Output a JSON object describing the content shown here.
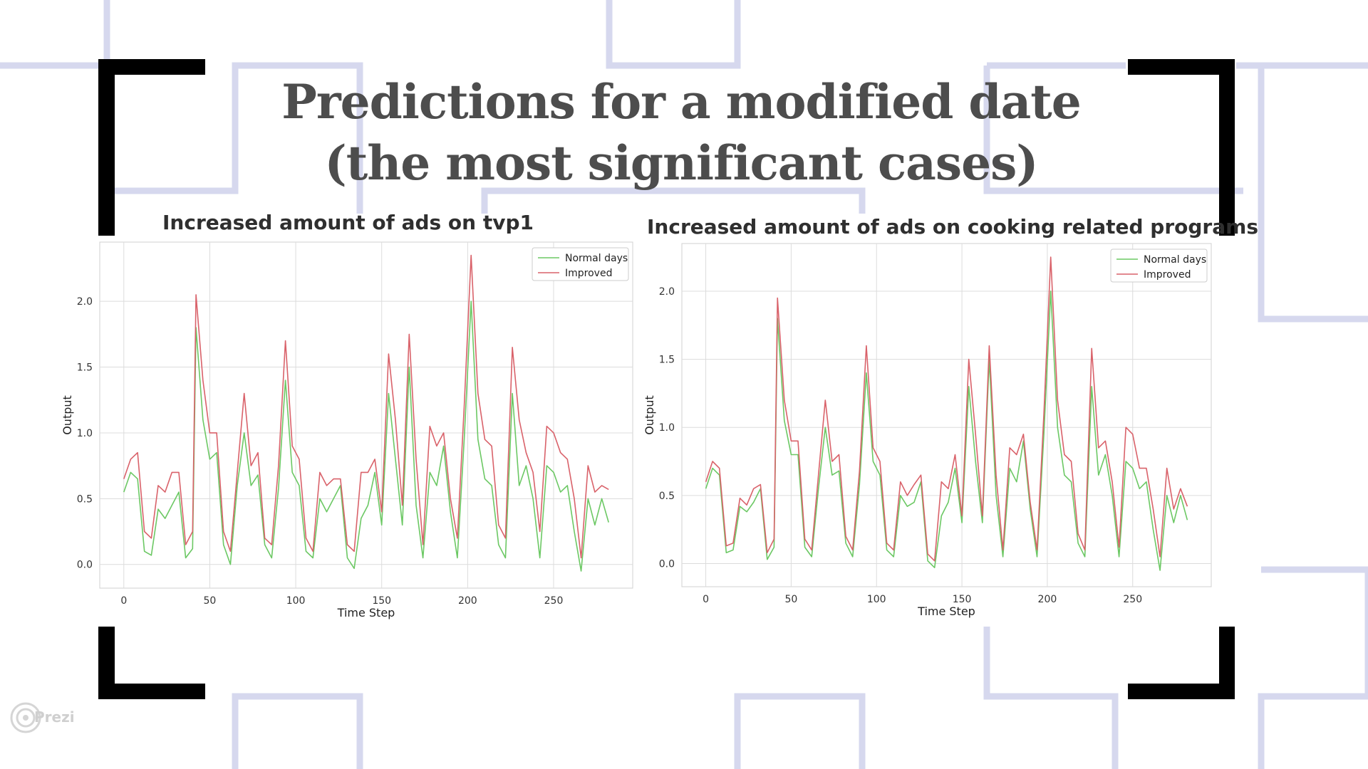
{
  "slide": {
    "title_line1": "Predictions for a modified date",
    "title_line2": "(the most significant cases)",
    "watermark": "Prezi",
    "colors": {
      "frame_decor": "#d6d8ee",
      "brackets": "#000000",
      "title": "#4d4d4d",
      "normal_series": "#6cc864",
      "improved_series": "#d9626a"
    }
  },
  "chart_data": [
    {
      "type": "line",
      "title": "Increased amount of ads on tvp1",
      "xlabel": "Time Step",
      "ylabel": "Output",
      "xlim": [
        -14,
        296
      ],
      "ylim": [
        -0.18,
        2.45
      ],
      "xticks": [
        0,
        50,
        100,
        150,
        200,
        250
      ],
      "yticks": [
        0.0,
        0.5,
        1.0,
        1.5,
        2.0
      ],
      "ytick_labels": [
        "0.0",
        "0.5",
        "1.0",
        "1.5",
        "2.0"
      ],
      "grid": true,
      "legend_position": "top-right",
      "series": [
        {
          "name": "Normal days",
          "color": "#6cc864",
          "x": [
            0,
            4,
            8,
            12,
            16,
            20,
            24,
            28,
            32,
            36,
            40,
            42,
            46,
            50,
            54,
            58,
            62,
            66,
            70,
            74,
            78,
            82,
            86,
            90,
            94,
            98,
            102,
            106,
            110,
            114,
            118,
            122,
            126,
            130,
            134,
            138,
            142,
            146,
            150,
            154,
            158,
            162,
            166,
            170,
            174,
            178,
            182,
            186,
            190,
            194,
            198,
            202,
            206,
            210,
            214,
            218,
            222,
            226,
            230,
            234,
            238,
            242,
            246,
            250,
            254,
            258,
            262,
            266,
            270,
            274,
            278,
            282
          ],
          "values": [
            0.55,
            0.7,
            0.65,
            0.1,
            0.07,
            0.42,
            0.35,
            0.45,
            0.55,
            0.05,
            0.12,
            1.8,
            1.1,
            0.8,
            0.85,
            0.15,
            0.0,
            0.6,
            1.0,
            0.6,
            0.68,
            0.15,
            0.05,
            0.58,
            1.4,
            0.7,
            0.6,
            0.1,
            0.05,
            0.5,
            0.4,
            0.5,
            0.6,
            0.05,
            -0.03,
            0.35,
            0.45,
            0.7,
            0.3,
            1.3,
            0.8,
            0.3,
            1.5,
            0.45,
            0.05,
            0.7,
            0.6,
            0.9,
            0.4,
            0.05,
            0.95,
            2.0,
            0.95,
            0.65,
            0.6,
            0.15,
            0.05,
            1.3,
            0.6,
            0.75,
            0.5,
            0.05,
            0.75,
            0.7,
            0.55,
            0.6,
            0.25,
            -0.05,
            0.5,
            0.3,
            0.5,
            0.32
          ]
        },
        {
          "name": "Improved",
          "color": "#d9626a",
          "x": [
            0,
            4,
            8,
            12,
            16,
            20,
            24,
            28,
            32,
            36,
            40,
            42,
            46,
            50,
            54,
            58,
            62,
            66,
            70,
            74,
            78,
            82,
            86,
            90,
            94,
            98,
            102,
            106,
            110,
            114,
            118,
            122,
            126,
            130,
            134,
            138,
            142,
            146,
            150,
            154,
            158,
            162,
            166,
            170,
            174,
            178,
            182,
            186,
            190,
            194,
            198,
            202,
            206,
            210,
            214,
            218,
            222,
            226,
            230,
            234,
            238,
            242,
            246,
            250,
            254,
            258,
            262,
            266,
            270,
            274,
            278,
            282
          ],
          "values": [
            0.65,
            0.8,
            0.85,
            0.25,
            0.2,
            0.6,
            0.55,
            0.7,
            0.7,
            0.15,
            0.25,
            2.05,
            1.4,
            1.0,
            1.0,
            0.25,
            0.1,
            0.7,
            1.3,
            0.75,
            0.85,
            0.2,
            0.15,
            0.75,
            1.7,
            0.9,
            0.8,
            0.2,
            0.1,
            0.7,
            0.6,
            0.65,
            0.65,
            0.15,
            0.1,
            0.7,
            0.7,
            0.8,
            0.4,
            1.6,
            1.1,
            0.45,
            1.75,
            0.8,
            0.15,
            1.05,
            0.9,
            1.0,
            0.5,
            0.2,
            1.2,
            2.35,
            1.3,
            0.95,
            0.9,
            0.3,
            0.2,
            1.65,
            1.1,
            0.85,
            0.7,
            0.25,
            1.05,
            1.0,
            0.85,
            0.8,
            0.5,
            0.05,
            0.75,
            0.55,
            0.6,
            0.57
          ]
        }
      ]
    },
    {
      "type": "line",
      "title": "Increased amount of ads on cooking related programs",
      "xlabel": "Time Step",
      "ylabel": "Output",
      "xlim": [
        -14,
        296
      ],
      "ylim": [
        -0.17,
        2.35
      ],
      "xticks": [
        0,
        50,
        100,
        150,
        200,
        250
      ],
      "yticks": [
        0.0,
        0.5,
        1.0,
        1.5,
        2.0
      ],
      "ytick_labels": [
        "0.0",
        "0.5",
        "1.0",
        "1.5",
        "2.0"
      ],
      "grid": true,
      "legend_position": "top-right",
      "series": [
        {
          "name": "Normal days",
          "color": "#6cc864",
          "x": [
            0,
            4,
            8,
            12,
            16,
            20,
            24,
            28,
            32,
            36,
            40,
            42,
            46,
            50,
            54,
            58,
            62,
            66,
            70,
            74,
            78,
            82,
            86,
            90,
            94,
            98,
            102,
            106,
            110,
            114,
            118,
            122,
            126,
            130,
            134,
            138,
            142,
            146,
            150,
            154,
            158,
            162,
            166,
            170,
            174,
            178,
            182,
            186,
            190,
            194,
            198,
            202,
            206,
            210,
            214,
            218,
            222,
            226,
            230,
            234,
            238,
            242,
            246,
            250,
            254,
            258,
            262,
            266,
            270,
            274,
            278,
            282
          ],
          "values": [
            0.55,
            0.7,
            0.65,
            0.08,
            0.1,
            0.42,
            0.38,
            0.45,
            0.55,
            0.03,
            0.12,
            1.8,
            1.05,
            0.8,
            0.8,
            0.12,
            0.05,
            0.55,
            1.0,
            0.65,
            0.68,
            0.15,
            0.05,
            0.58,
            1.4,
            0.75,
            0.65,
            0.1,
            0.05,
            0.5,
            0.42,
            0.45,
            0.6,
            0.02,
            -0.03,
            0.35,
            0.45,
            0.7,
            0.3,
            1.3,
            0.75,
            0.3,
            1.5,
            0.5,
            0.05,
            0.7,
            0.6,
            0.9,
            0.4,
            0.05,
            0.95,
            2.0,
            1.0,
            0.65,
            0.6,
            0.15,
            0.05,
            1.3,
            0.65,
            0.8,
            0.5,
            0.05,
            0.75,
            0.7,
            0.55,
            0.6,
            0.25,
            -0.05,
            0.5,
            0.3,
            0.5,
            0.32
          ]
        },
        {
          "name": "Improved",
          "color": "#d9626a",
          "x": [
            0,
            4,
            8,
            12,
            16,
            20,
            24,
            28,
            32,
            36,
            40,
            42,
            46,
            50,
            54,
            58,
            62,
            66,
            70,
            74,
            78,
            82,
            86,
            90,
            94,
            98,
            102,
            106,
            110,
            114,
            118,
            122,
            126,
            130,
            134,
            138,
            142,
            146,
            150,
            154,
            158,
            162,
            166,
            170,
            174,
            178,
            182,
            186,
            190,
            194,
            198,
            202,
            206,
            210,
            214,
            218,
            222,
            226,
            230,
            234,
            238,
            242,
            246,
            250,
            254,
            258,
            262,
            266,
            270,
            274,
            278,
            282
          ],
          "values": [
            0.6,
            0.75,
            0.7,
            0.13,
            0.15,
            0.48,
            0.43,
            0.55,
            0.58,
            0.08,
            0.18,
            1.95,
            1.2,
            0.9,
            0.9,
            0.18,
            0.1,
            0.65,
            1.2,
            0.75,
            0.8,
            0.2,
            0.1,
            0.68,
            1.6,
            0.85,
            0.75,
            0.15,
            0.1,
            0.6,
            0.5,
            0.58,
            0.65,
            0.07,
            0.02,
            0.6,
            0.55,
            0.8,
            0.35,
            1.5,
            0.95,
            0.35,
            1.6,
            0.65,
            0.1,
            0.85,
            0.8,
            0.95,
            0.45,
            0.1,
            1.1,
            2.25,
            1.2,
            0.8,
            0.75,
            0.22,
            0.1,
            1.58,
            0.85,
            0.9,
            0.6,
            0.12,
            1.0,
            0.95,
            0.7,
            0.7,
            0.4,
            0.05,
            0.7,
            0.4,
            0.55,
            0.42
          ]
        }
      ]
    }
  ]
}
